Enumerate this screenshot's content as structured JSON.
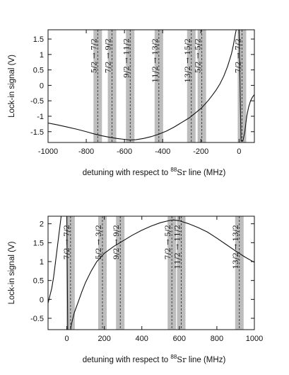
{
  "chart_data": [
    {
      "type": "line",
      "xlabel_pre": "detuning  with respect to ",
      "xlabel_sup": "88",
      "xlabel_elem": "Sr",
      "xlabel_post": " line (MHz)",
      "ylabel": "Lock-in signal (V)",
      "xlim": [
        -1000,
        80
      ],
      "ylim": [
        -1.85,
        1.8
      ],
      "xticks": [
        -1000,
        -800,
        -600,
        -400,
        -200,
        0
      ],
      "yticks": [
        -1.5,
        -1,
        -0.5,
        0,
        0.5,
        1,
        1.5
      ],
      "grid": false,
      "transitions": [
        {
          "x": -740,
          "label": "5/2 → 7/2"
        },
        {
          "x": -665,
          "label": "7/2 → 9/2"
        },
        {
          "x": -570,
          "label": "9/2 → 11/2"
        },
        {
          "x": -420,
          "label": "11/2 → 13/2"
        },
        {
          "x": -250,
          "label": "13/2 → 15/2"
        },
        {
          "x": -195,
          "label": "5/2 → 5/2"
        },
        {
          "x": 15,
          "label": "7/2 → 7/2"
        }
      ],
      "series": [
        {
          "x": [
            -1000,
            -950,
            -900,
            -850,
            -800,
            -760,
            -720,
            -680,
            -640,
            -600,
            -570,
            -540,
            -500,
            -460,
            -420,
            -380,
            -340,
            -300,
            -260,
            -240,
            -220,
            -200,
            -180,
            -160,
            -140,
            -120,
            -100,
            -80,
            -60,
            -40,
            -30,
            -20,
            -15,
            -10,
            -5,
            0,
            10,
            20,
            30,
            40,
            50,
            60,
            70,
            80
          ],
          "y": [
            -1.22,
            -1.28,
            -1.35,
            -1.42,
            -1.5,
            -1.57,
            -1.63,
            -1.68,
            -1.72,
            -1.75,
            -1.77,
            -1.76,
            -1.72,
            -1.66,
            -1.58,
            -1.48,
            -1.35,
            -1.2,
            -1.05,
            -0.95,
            -0.85,
            -0.75,
            -0.62,
            -0.48,
            -0.32,
            -0.15,
            0.05,
            0.3,
            0.62,
            1.02,
            1.3,
            1.65,
            1.8,
            1.8,
            1.8,
            1.8,
            -1.8,
            -1.8,
            -1.5,
            -1.0,
            -0.7,
            -0.5,
            -0.38,
            -0.3
          ]
        }
      ]
    },
    {
      "type": "line",
      "xlabel_pre": "detuning  with respect to ",
      "xlabel_sup": "88",
      "xlabel_elem": "Sr",
      "xlabel_post": " line (MHz)",
      "ylabel": "Lock-in signal (V)",
      "xlim": [
        -100,
        1000
      ],
      "ylim": [
        -0.8,
        2.2
      ],
      "xticks": [
        0,
        200,
        400,
        600,
        800,
        1000
      ],
      "yticks": [
        -0.5,
        0,
        0.5,
        1,
        1.5,
        2
      ],
      "grid": false,
      "transitions": [
        {
          "x": 20,
          "label": "7/2 → 7/2"
        },
        {
          "x": 190,
          "label": "5/2 → 3/2"
        },
        {
          "x": 285,
          "label": "9/2 → 9/2"
        },
        {
          "x": 560,
          "label": "7/2 → 5/2"
        },
        {
          "x": 610,
          "label": "11/2 → 11/2"
        },
        {
          "x": 920,
          "label": "13/2 → 13/2"
        }
      ],
      "series": [
        {
          "x": [
            -100,
            -90,
            -80,
            -70,
            -60,
            -50,
            -40,
            -30,
            -20,
            -15,
            -10,
            0,
            5,
            10,
            15,
            20,
            25,
            30,
            40,
            60,
            80,
            100,
            130,
            160,
            200,
            250,
            300,
            350,
            400,
            450,
            500,
            550,
            570,
            600,
            650,
            700,
            750,
            800,
            850,
            900,
            950,
            1000
          ],
          "y": [
            -0.1,
            0.1,
            0.3,
            0.6,
            1.0,
            1.4,
            1.8,
            2.2,
            2.2,
            2.2,
            2.2,
            2.2,
            -0.8,
            -0.8,
            -0.8,
            -0.8,
            -0.65,
            -0.55,
            -0.35,
            -0.08,
            0.2,
            0.45,
            0.75,
            1.0,
            1.22,
            1.4,
            1.55,
            1.7,
            1.83,
            1.94,
            2.03,
            2.09,
            2.1,
            2.08,
            2.0,
            1.9,
            1.78,
            1.62,
            1.45,
            1.28,
            1.12,
            0.98
          ]
        }
      ]
    }
  ]
}
